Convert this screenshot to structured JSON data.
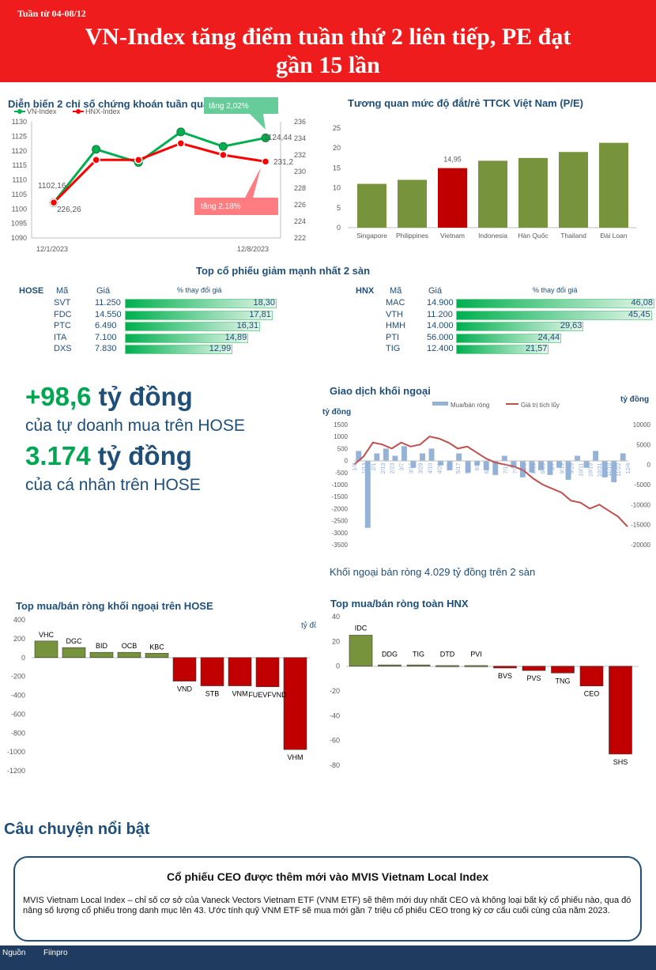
{
  "header": {
    "week": "Tuần từ 04-08/12",
    "headline_line1": "VN-Index tăng điểm tuần thứ 2 liên tiếp, PE đạt",
    "headline_line2": "gần 15 lần"
  },
  "colors": {
    "green": "#77933c",
    "red": "#c00000",
    "navy": "#1f4e79",
    "vn_line": "#00b050",
    "hnx_line": "#ff0000",
    "bar_green": "#00b050"
  },
  "index_chart": {
    "title": "Diễn biến 2 chỉ số chứng khoán tuần qua",
    "legend": [
      "VN-Index",
      "HNX-Index"
    ],
    "x_start": "12/1/2023",
    "x_end": "12/8/2023",
    "vn_ticks": [
      "1130",
      "1125",
      "1120",
      "1115",
      "1110",
      "1105",
      "1100",
      "1095",
      "1090"
    ],
    "hnx_ticks": [
      "236",
      "234",
      "232",
      "230",
      "228",
      "226",
      "224",
      "222"
    ],
    "vn_start_label": "1102,16",
    "vn_end_label": "1124,44",
    "hnx_start_label": "226,26",
    "hnx_end_label": "231,2",
    "vn_change_label": "tăng 2,02%",
    "hnx_change_label": "tăng 2,18%",
    "chart_data": {
      "type": "line",
      "x": [
        "12/1/2023",
        "12/4/2023",
        "12/5/2023",
        "12/6/2023",
        "12/7/2023",
        "12/8/2023"
      ],
      "series": [
        {
          "name": "VN-Index",
          "axis": "left",
          "values": [
            1102.16,
            1120.5,
            1116.0,
            1126.5,
            1121.5,
            1124.44
          ]
        },
        {
          "name": "HNX-Index",
          "axis": "right",
          "values": [
            226.26,
            231.4,
            231.4,
            233.4,
            232.0,
            231.2
          ]
        }
      ],
      "ylim_left": [
        1090,
        1130
      ],
      "ylim_right": [
        222,
        236
      ]
    }
  },
  "pe_chart": {
    "title": "Tương quan mức độ đắt/rẻ TTCK Việt Nam (P/E)",
    "highlight_label": "14,95",
    "y_ticks": [
      "25",
      "20",
      "15",
      "10",
      "5",
      "0"
    ],
    "chart_data": {
      "type": "bar",
      "categories": [
        "Singapore",
        "Philippines",
        "Vietnam",
        "Indonesia",
        "Hàn Quốc",
        "Thailand",
        "Đài Loan"
      ],
      "values": [
        11.0,
        12.0,
        14.95,
        16.8,
        17.5,
        19.0,
        21.3
      ],
      "ylim": [
        0,
        25
      ],
      "highlight": "Vietnam"
    }
  },
  "top_decliners": {
    "title": "Top cổ phiếu giảm mạnh nhất 2 sàn",
    "hose": {
      "exchange": "HOSE",
      "col_code": "Mã",
      "col_price": "Giá",
      "col_change": "% thay đổi giá",
      "rows": [
        {
          "code": "SVT",
          "price": "11.250",
          "change": "18,30"
        },
        {
          "code": "FDC",
          "price": "14.550",
          "change": "17,81"
        },
        {
          "code": "PTC",
          "price": "6.490",
          "change": "16,31"
        },
        {
          "code": "ITA",
          "price": "7.100",
          "change": "14,89"
        },
        {
          "code": "DXS",
          "price": "7.830",
          "change": "12,99"
        }
      ],
      "chart_data": {
        "type": "bar",
        "categories": [
          "SVT",
          "FDC",
          "PTC",
          "ITA",
          "DXS"
        ],
        "values": [
          18.3,
          17.81,
          16.31,
          14.89,
          12.99
        ]
      }
    },
    "hnx": {
      "exchange": "HNX",
      "col_code": "Mã",
      "col_price": "Giá",
      "col_change": "% thay đổi giá",
      "rows": [
        {
          "code": "MAC",
          "price": "14.900",
          "change": "46,08"
        },
        {
          "code": "VTH",
          "price": "11.200",
          "change": "45,45"
        },
        {
          "code": "HMH",
          "price": "14.000",
          "change": "29,63"
        },
        {
          "code": "PTI",
          "price": "56.000",
          "change": "24,44"
        },
        {
          "code": "TIG",
          "price": "12.400",
          "change": "21,57"
        }
      ],
      "chart_data": {
        "type": "bar",
        "categories": [
          "MAC",
          "VTH",
          "HMH",
          "PTI",
          "TIG"
        ],
        "values": [
          46.08,
          45.45,
          29.63,
          24.44,
          21.57
        ]
      }
    }
  },
  "big_numbers": {
    "prop_value": "+98,6",
    "prop_unit": "tỷ đồng",
    "prop_desc": "của tự doanh mua trên HOSE",
    "indiv_value": "3.174",
    "indiv_unit": "tỷ đồng",
    "indiv_desc": "của cá nhân trên HOSE"
  },
  "foreign_chart": {
    "title": "Giao dịch khối ngoại",
    "unit_left": "tỷ đồng",
    "unit_right": "tỷ đồng",
    "legend": [
      "Mua/bán ròng",
      "Giá trị tích lũy"
    ],
    "left_ticks": [
      "1500",
      "1000",
      "500",
      "0",
      "-500",
      "-1000",
      "-1500",
      "-2000",
      "-2500",
      "-3000",
      "-3500"
    ],
    "right_ticks": [
      "10000",
      "5000",
      "0",
      "-5000",
      "-10000",
      "-15000",
      "-20000"
    ],
    "x_labels": [
      "1/3",
      "1/13",
      "2/1",
      "2/13",
      "2/23",
      "3/7",
      "3/17",
      "3/29",
      "4/10",
      "4/20",
      "5/5",
      "5/17",
      "5/29",
      "6/8",
      "6/20",
      "6/30",
      "7/12",
      "7/24",
      "8/3",
      "8/15",
      "8/25",
      "9/7",
      "9/19",
      "9/29",
      "10/11",
      "10/19",
      "10/31",
      "11/10",
      "11/22",
      "12/4"
    ],
    "caption": "Khối ngoại bán ròng 4.029 tỷ đồng trên 2 sàn",
    "chart_data": {
      "type": "line",
      "series": [
        {
          "name": "Giá trị tích lũy",
          "axis": "right",
          "values": [
            0,
            2000,
            5500,
            5000,
            4000,
            5500,
            4500,
            5000,
            7000,
            6500,
            5500,
            4000,
            4500,
            3000,
            1500,
            500,
            0,
            -500,
            -1500,
            -3500,
            -5000,
            -6000,
            -7000,
            -9000,
            -9500,
            -11000,
            -10000,
            -11500,
            -13000,
            -15500
          ]
        },
        {
          "name": "Mua/bán ròng",
          "axis": "left",
          "values": [
            400,
            -2800,
            300,
            500,
            200,
            600,
            -300,
            300,
            500,
            -200,
            -400,
            300,
            -500,
            -200,
            -400,
            -600,
            200,
            -300,
            -700,
            -500,
            -400,
            -600,
            -300,
            -800,
            200,
            -300,
            400,
            -700,
            -900,
            300
          ]
        }
      ],
      "ylim_left": [
        -3500,
        1500
      ],
      "ylim_right": [
        -20000,
        10000
      ]
    }
  },
  "hose_foreign": {
    "title": "Top mua/bán ròng khối ngoại trên HOSE",
    "unit": "tỷ đồng",
    "y_ticks": [
      "400",
      "200",
      "0",
      "-200",
      "-400",
      "-600",
      "-800",
      "-1000",
      "-1200"
    ],
    "chart_data": {
      "type": "bar",
      "categories": [
        "VHC",
        "DGC",
        "BID",
        "OCB",
        "KBC",
        "VND",
        "STB",
        "VNM",
        "FUEVFVND",
        "VHM"
      ],
      "values": [
        175,
        105,
        55,
        55,
        45,
        -250,
        -300,
        -300,
        -310,
        -975
      ],
      "ylim": [
        -1200,
        400
      ]
    }
  },
  "hnx_foreign": {
    "title": "Top mua/bán ròng toàn HNX",
    "y_ticks": [
      "40",
      "20",
      "0",
      "-20",
      "-40",
      "-60",
      "-80"
    ],
    "chart_data": {
      "type": "bar",
      "categories": [
        "IDC",
        "DDG",
        "TIG",
        "DTD",
        "PVI",
        "BVS",
        "PVS",
        "TNG",
        "CEO",
        "SHS"
      ],
      "values": [
        25,
        1,
        1,
        0.5,
        0.5,
        -1.5,
        -3.5,
        -5.5,
        -16,
        -71
      ],
      "ylim": [
        -80,
        40
      ]
    }
  },
  "story": {
    "section_title": "Câu chuyện nổi bật",
    "headline": "Cổ phiếu CEO được thêm mới vào MVIS Vietnam Local Index",
    "body": "MVIS Vietnam Local Index – chỉ số cơ sở của Vaneck Vectors Vietnam ETF (VNM ETF) sẽ thêm mới duy nhất CEO và không loại bất kỳ cổ phiếu nào, qua đó nâng số lượng cổ phiếu trong danh mục lên 43. Ước tính quỹ VNM ETF sẽ mua mới gần 7 triệu cổ phiếu CEO trong kỳ cơ cấu cuối cùng của năm 2023."
  },
  "footer": {
    "source_label": "Nguồn",
    "source_value": "Fiinpro"
  }
}
